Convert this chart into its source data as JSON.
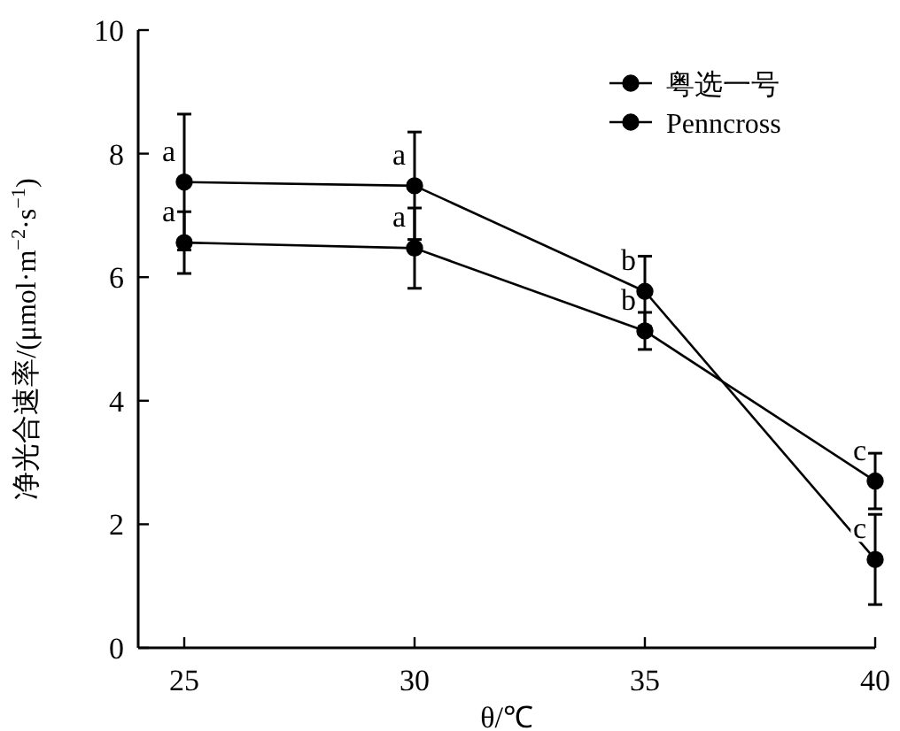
{
  "chart_data": {
    "type": "line",
    "xlabel": "θ/℃",
    "ylabel": "净光合速率/(μmol·m$^{−2}$·s$^{−1}$)",
    "x": [
      25,
      30,
      35,
      40
    ],
    "xlim": [
      24,
      40
    ],
    "xticks": [
      25,
      30,
      35,
      40
    ],
    "ylim": [
      0,
      10
    ],
    "yticks": [
      0,
      2,
      4,
      6,
      8,
      10
    ],
    "marker": "circle",
    "line_style": "solid",
    "grid": false,
    "legend": "top right",
    "series": [
      {
        "name": "粤选一号",
        "color": "#000000",
        "values": [
          6.56,
          6.47,
          5.13,
          2.7
        ],
        "errors": [
          0.5,
          0.65,
          0.3,
          0.45
        ]
      },
      {
        "name": "Penncross",
        "color": "#000000",
        "values": [
          7.54,
          7.48,
          5.77,
          1.43
        ],
        "errors": [
          1.1,
          0.87,
          0.57,
          0.73
        ]
      }
    ],
    "annotations": [
      {
        "text": "a",
        "x": 25,
        "y": 7.54
      },
      {
        "text": "a",
        "x": 25,
        "y": 6.56
      },
      {
        "text": "a",
        "x": 30,
        "y": 7.48
      },
      {
        "text": "a",
        "x": 30,
        "y": 6.47
      },
      {
        "text": "b",
        "x": 35,
        "y": 5.77
      },
      {
        "text": "b",
        "x": 35,
        "y": 5.13
      },
      {
        "text": "c",
        "x": 40,
        "y": 2.7
      },
      {
        "text": "c",
        "x": 40,
        "y": 1.43
      }
    ]
  }
}
